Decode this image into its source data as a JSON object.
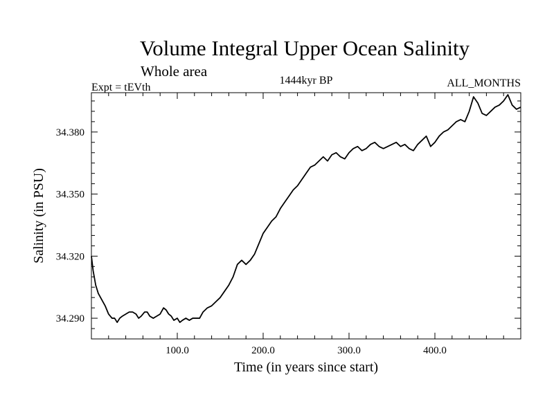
{
  "chart_data": {
    "type": "line",
    "title": "Volume Integral Upper Ocean Salinity",
    "subtitle": "Whole area",
    "left_label": "Expt = tEVth",
    "center_label": "1444kyr BP",
    "right_label": "ALL_MONTHS",
    "xlabel": "Time (in years since start)",
    "ylabel": "Salinity (in PSU)",
    "xlim": [
      0,
      500
    ],
    "ylim": [
      34.28,
      34.399
    ],
    "x_ticks": [
      100,
      200,
      300,
      400
    ],
    "x_tick_labels": [
      "100.0",
      "200.0",
      "300.0",
      "400.0"
    ],
    "y_ticks": [
      34.29,
      34.32,
      34.35,
      34.38
    ],
    "y_tick_labels": [
      "34.290",
      "34.320",
      "34.350",
      "34.380"
    ],
    "grid": false,
    "line_color": "#000000",
    "series": [
      {
        "name": "salinity",
        "x": [
          0,
          2,
          5,
          8,
          12,
          16,
          20,
          24,
          27,
          30,
          33,
          36,
          40,
          44,
          48,
          52,
          55,
          58,
          62,
          65,
          68,
          72,
          76,
          80,
          84,
          87,
          90,
          93,
          96,
          100,
          103,
          106,
          110,
          114,
          118,
          122,
          126,
          130,
          135,
          140,
          145,
          150,
          155,
          160,
          165,
          170,
          175,
          180,
          185,
          190,
          195,
          200,
          205,
          210,
          215,
          220,
          225,
          230,
          235,
          240,
          245,
          250,
          255,
          260,
          265,
          270,
          275,
          280,
          285,
          290,
          295,
          300,
          305,
          310,
          315,
          320,
          325,
          330,
          335,
          340,
          345,
          350,
          355,
          360,
          365,
          370,
          375,
          380,
          385,
          390,
          395,
          400,
          405,
          410,
          415,
          420,
          425,
          430,
          435,
          440,
          445,
          450,
          455,
          460,
          465,
          470,
          475,
          480,
          485,
          490,
          495,
          500
        ],
        "y": [
          34.32,
          34.313,
          34.306,
          34.302,
          34.299,
          34.296,
          34.292,
          34.29,
          34.29,
          34.288,
          34.29,
          34.291,
          34.292,
          34.293,
          34.293,
          34.292,
          34.29,
          34.291,
          34.293,
          34.293,
          34.291,
          34.29,
          34.291,
          34.292,
          34.295,
          34.294,
          34.292,
          34.291,
          34.289,
          34.29,
          34.288,
          34.289,
          34.29,
          34.289,
          34.29,
          34.29,
          34.29,
          34.293,
          34.295,
          34.296,
          34.298,
          34.3,
          34.303,
          34.306,
          34.31,
          34.316,
          34.318,
          34.316,
          34.318,
          34.321,
          34.326,
          34.331,
          34.334,
          34.337,
          34.339,
          34.343,
          34.346,
          34.349,
          34.352,
          34.354,
          34.357,
          34.36,
          34.363,
          34.364,
          34.366,
          34.368,
          34.366,
          34.369,
          34.37,
          34.368,
          34.367,
          34.37,
          34.372,
          34.373,
          34.371,
          34.372,
          34.374,
          34.375,
          34.373,
          34.372,
          34.373,
          34.374,
          34.375,
          34.373,
          34.374,
          34.372,
          34.371,
          34.374,
          34.376,
          34.378,
          34.373,
          34.375,
          34.378,
          34.38,
          34.381,
          34.383,
          34.385,
          34.386,
          34.385,
          34.39,
          34.397,
          34.394,
          34.389,
          34.388,
          34.39,
          34.392,
          34.393,
          34.395,
          34.398,
          34.393,
          34.391,
          34.392
        ]
      }
    ]
  }
}
